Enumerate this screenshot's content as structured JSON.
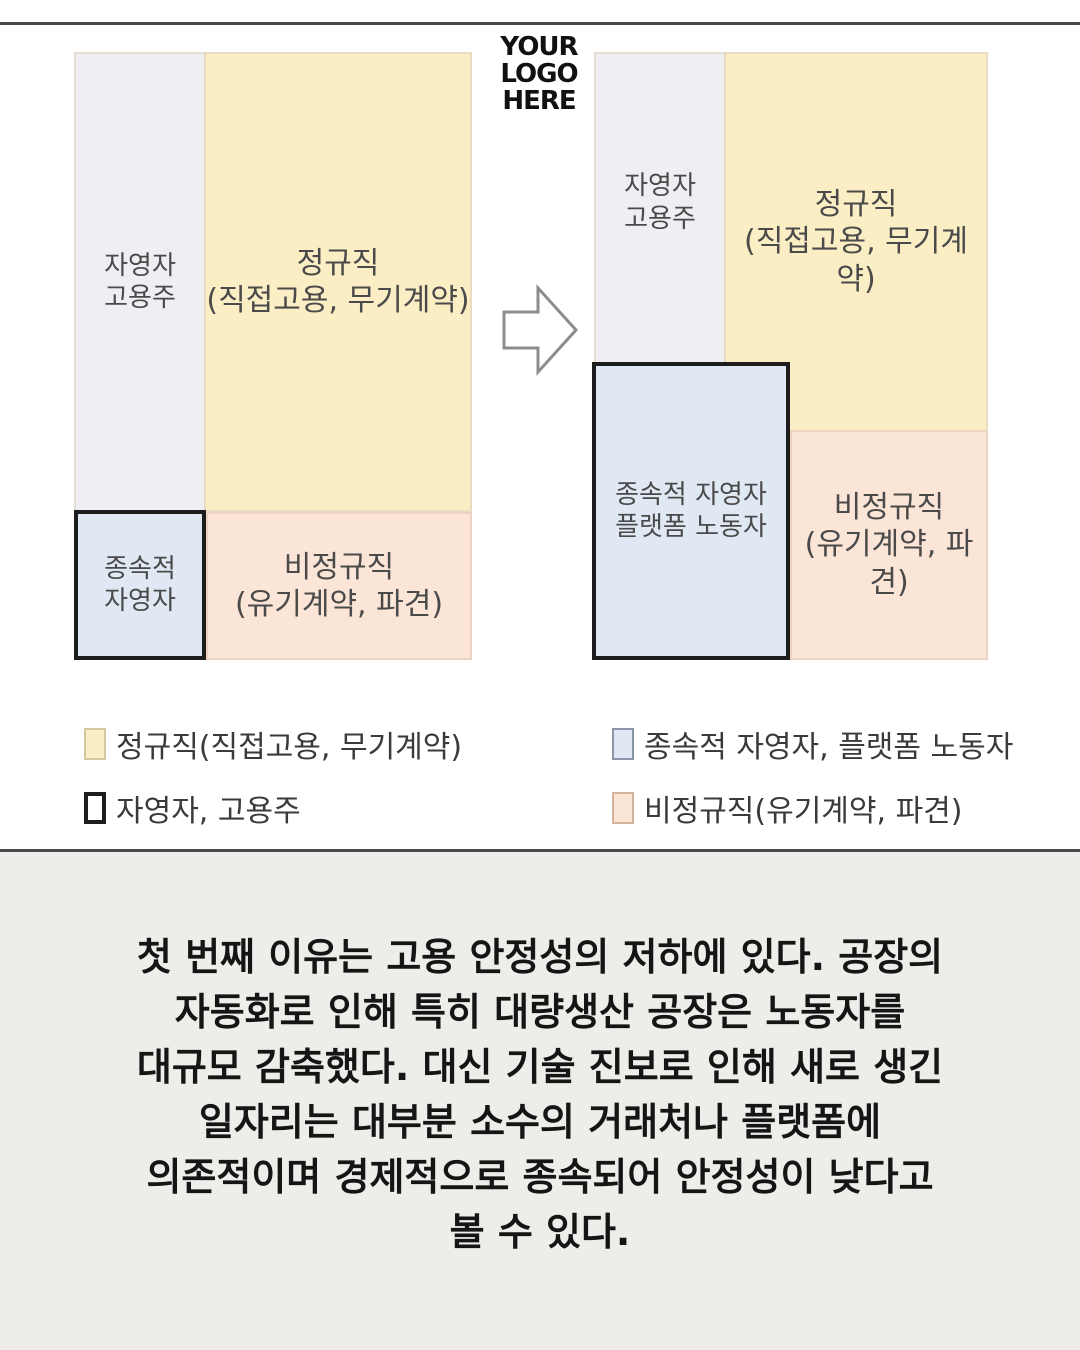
{
  "logo": {
    "line1": "YOUR",
    "line2": "LOGO",
    "line3": "HERE"
  },
  "diagram_before": {
    "self_employed": {
      "line1": "자영자",
      "line2": "고용주"
    },
    "regular": {
      "line1": "정규직",
      "line2": "(직접고용, 무기계약)"
    },
    "dependent": {
      "line1": "종속적",
      "line2": "자영자"
    },
    "nonregular": {
      "line1": "비정규직",
      "line2": "(유기계약, 파견)"
    }
  },
  "diagram_after": {
    "self_employed": {
      "line1": "자영자",
      "line2": "고용주"
    },
    "regular": {
      "line1": "정규직",
      "line2": "(직접고용, 무기계약)"
    },
    "dependent": {
      "line1": "종속적 자영자",
      "line2": "플랫폼 노동자"
    },
    "nonregular": {
      "line1": "비정규직",
      "line2": "(유기계약, 파견)"
    }
  },
  "arrow_icon": "right-arrow-outline",
  "legend": {
    "regular": "정규직(직접고용, 무기계약)",
    "self_employed": "자영자, 고용주",
    "dependent": "종속적 자영자, 플랫폼 노동자",
    "nonregular": "비정규직(유기계약, 파견)"
  },
  "colors": {
    "regular": "#fbedc4",
    "nonregular": "#fbe5d7",
    "dependent": "#dfe8f3",
    "self_employed": "#efeff3",
    "background": "#efede9"
  },
  "caption": "첫 번째 이유는 고용 안정성의 저하에 있다. 공장의\n자동화로 인해 특히 대량생산 공장은 노동자를\n대규모 감축했다. 대신 기술 진보로 인해 새로 생긴\n일자리는 대부분 소수의 거래처나 플랫폼에\n의존적이며 경제적으로 종속되어 안정성이 낮다고\n볼 수 있다."
}
